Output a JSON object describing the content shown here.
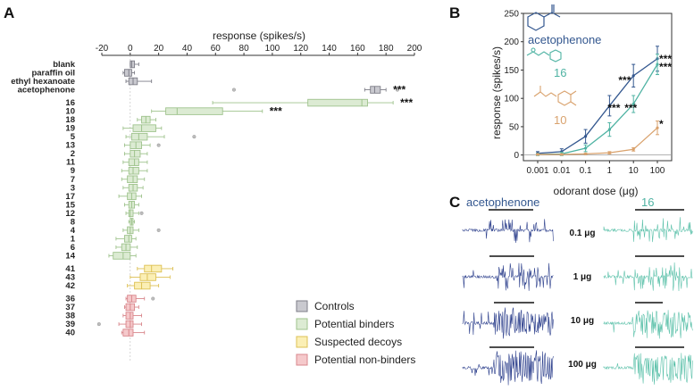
{
  "panels": {
    "a": {
      "letter": "A"
    },
    "b": {
      "letter": "B"
    },
    "c": {
      "letter": "C"
    }
  },
  "colors": {
    "controls_fill": "#c9c9cf",
    "controls_stroke": "#7e7e88",
    "binders_fill": "#dcebd3",
    "binders_stroke": "#9fc38d",
    "decoys_fill": "#fbefb5",
    "decoys_stroke": "#ddc155",
    "nonbinders_fill": "#f5c9cb",
    "nonbinders_stroke": "#d9878c",
    "acetophenone": "#33578f",
    "compound16": "#4fb3a3",
    "compound10": "#d9a26d",
    "trace_dark": "#2c3f8c",
    "trace_teal": "#5cc1aa"
  },
  "chart_data": [
    {
      "type": "box",
      "id": "panel-a",
      "title": "",
      "xlabel": "response (spikes/s)",
      "xlim": [
        -20,
        200
      ],
      "xticks": [
        -20,
        0,
        20,
        40,
        60,
        80,
        100,
        120,
        140,
        160,
        180,
        200
      ],
      "legend": {
        "position": "bottom-right",
        "entries": [
          {
            "name": "Controls",
            "group": "controls"
          },
          {
            "name": "Potential binders",
            "group": "binders"
          },
          {
            "name": "Suspected decoys",
            "group": "decoys"
          },
          {
            "name": "Potential non-binders",
            "group": "nonbinders"
          }
        ]
      },
      "categories": [
        {
          "label": "blank",
          "group": "controls",
          "min": 0,
          "q1": 0,
          "median": 1,
          "q3": 3,
          "max": 6
        },
        {
          "label": "paraffin oil",
          "group": "controls",
          "min": -5,
          "q1": -4,
          "median": -1,
          "q3": 1,
          "max": 3
        },
        {
          "label": "ethyl hexanoate",
          "group": "controls",
          "min": -3,
          "q1": -1,
          "median": 2,
          "q3": 5,
          "max": 15
        },
        {
          "label": "acetophenone",
          "group": "controls",
          "min": 165,
          "q1": 169,
          "median": 172,
          "q3": 176,
          "max": 180,
          "outliers": [
            73,
            188
          ],
          "sig": "***"
        },
        {
          "label": "",
          "group": "spacer"
        },
        {
          "label": "16",
          "group": "binders",
          "min": 58,
          "q1": 125,
          "median": 163,
          "q3": 167,
          "max": 185,
          "sig": "***"
        },
        {
          "label": "10",
          "group": "binders",
          "min": 15,
          "q1": 25,
          "median": 33,
          "q3": 65,
          "max": 93,
          "sig": "***"
        },
        {
          "label": "18",
          "group": "binders",
          "min": 5,
          "q1": 8,
          "median": 11,
          "q3": 14,
          "max": 18
        },
        {
          "label": "19",
          "group": "binders",
          "min": -5,
          "q1": 2,
          "median": 8,
          "q3": 18,
          "max": 22
        },
        {
          "label": "5",
          "group": "binders",
          "min": -3,
          "q1": 1,
          "median": 6,
          "q3": 12,
          "max": 24,
          "outliers": [
            45
          ]
        },
        {
          "label": "13",
          "group": "binders",
          "min": -4,
          "q1": 0,
          "median": 4,
          "q3": 8,
          "max": 14,
          "outliers": [
            20
          ]
        },
        {
          "label": "2",
          "group": "binders",
          "min": -4,
          "q1": 0,
          "median": 3,
          "q3": 7,
          "max": 12
        },
        {
          "label": "11",
          "group": "binders",
          "min": -5,
          "q1": -1,
          "median": 3,
          "q3": 6,
          "max": 12
        },
        {
          "label": "9",
          "group": "binders",
          "min": -6,
          "q1": -1,
          "median": 2,
          "q3": 6,
          "max": 12
        },
        {
          "label": "7",
          "group": "binders",
          "min": -6,
          "q1": -2,
          "median": 2,
          "q3": 5,
          "max": 10
        },
        {
          "label": "3",
          "group": "binders",
          "min": -5,
          "q1": -1,
          "median": 2,
          "q3": 5,
          "max": 9
        },
        {
          "label": "17",
          "group": "binders",
          "min": -8,
          "q1": -2,
          "median": 1,
          "q3": 4,
          "max": 8
        },
        {
          "label": "15",
          "group": "binders",
          "min": -4,
          "q1": -1,
          "median": 1,
          "q3": 3,
          "max": 6
        },
        {
          "label": "12",
          "group": "binders",
          "min": -3,
          "q1": -1,
          "median": 0,
          "q3": 2,
          "max": 6,
          "outliers": [
            8
          ]
        },
        {
          "label": "8",
          "group": "binders",
          "min": -1,
          "q1": 0,
          "median": 1,
          "q3": 2,
          "max": 3
        },
        {
          "label": "4",
          "group": "binders",
          "min": -5,
          "q1": -2,
          "median": 0,
          "q3": 2,
          "max": 6,
          "outliers": [
            20
          ]
        },
        {
          "label": "1",
          "group": "binders",
          "min": -10,
          "q1": -4,
          "median": -1,
          "q3": 1,
          "max": 4
        },
        {
          "label": "6",
          "group": "binders",
          "min": -10,
          "q1": -6,
          "median": -3,
          "q3": 0,
          "max": 5
        },
        {
          "label": "14",
          "group": "binders",
          "min": -15,
          "q1": -12,
          "median": -5,
          "q3": 0,
          "max": 4
        },
        {
          "label": "",
          "group": "spacer"
        },
        {
          "label": "41",
          "group": "decoys",
          "min": 5,
          "q1": 10,
          "median": 15,
          "q3": 22,
          "max": 30
        },
        {
          "label": "43",
          "group": "decoys",
          "min": 0,
          "q1": 7,
          "median": 12,
          "q3": 18,
          "max": 28
        },
        {
          "label": "42",
          "group": "decoys",
          "min": -2,
          "q1": 3,
          "median": 8,
          "q3": 14,
          "max": 20
        },
        {
          "label": "",
          "group": "spacer"
        },
        {
          "label": "36",
          "group": "nonbinders",
          "min": -3,
          "q1": -2,
          "median": 1,
          "q3": 4,
          "max": 10,
          "outliers": [
            16
          ]
        },
        {
          "label": "37",
          "group": "nonbinders",
          "min": -4,
          "q1": -3,
          "median": 0,
          "q3": 3,
          "max": 6
        },
        {
          "label": "38",
          "group": "nonbinders",
          "min": -5,
          "q1": -3,
          "median": 0,
          "q3": 2,
          "max": 8
        },
        {
          "label": "39",
          "group": "nonbinders",
          "min": -8,
          "q1": -3,
          "median": 0,
          "q3": 2,
          "max": 8,
          "outliers": [
            -22
          ]
        },
        {
          "label": "40",
          "group": "nonbinders",
          "min": -6,
          "q1": -5,
          "median": -1,
          "q3": 2,
          "max": 10
        }
      ]
    },
    {
      "type": "line",
      "id": "panel-b",
      "xlabel": "odorant dose (μg)",
      "ylabel": "response (spikes/s)",
      "x": [
        "0.001",
        "0.01",
        "0.1",
        "1",
        "10",
        "100"
      ],
      "ylim": [
        -10,
        250
      ],
      "yticks": [
        0,
        50,
        100,
        150,
        200,
        250
      ],
      "series": [
        {
          "name": "acetophenone",
          "color_key": "acetophenone",
          "values": [
            3,
            6,
            33,
            87,
            140,
            170
          ],
          "errors": [
            3,
            5,
            12,
            18,
            20,
            22
          ],
          "sig": "***"
        },
        {
          "name": "16",
          "color_key": "compound16",
          "values": [
            1,
            2,
            12,
            45,
            90,
            160
          ],
          "errors": [
            2,
            3,
            6,
            12,
            15,
            18
          ],
          "sig": "***"
        },
        {
          "name": "10",
          "color_key": "compound10",
          "values": [
            1,
            1,
            2,
            4,
            10,
            48
          ],
          "errors": [
            1,
            1,
            1,
            2,
            3,
            12
          ],
          "sig": "*"
        }
      ],
      "point_labels": [
        "***",
        "***",
        "***"
      ]
    }
  ],
  "panel_c": {
    "left_title": "acetophenone",
    "right_title": "16",
    "doses": [
      "0.1 μg",
      "1 μg",
      "10 μg",
      "100 μg"
    ]
  }
}
